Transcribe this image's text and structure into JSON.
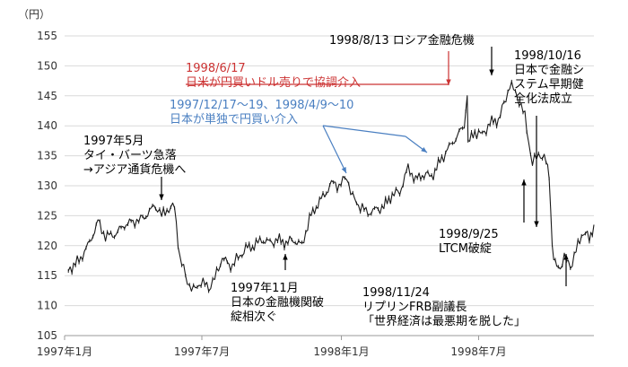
{
  "chart_data": {
    "type": "line",
    "y_unit_label": "（円）",
    "ylim": [
      105,
      155
    ],
    "yticks": [
      105,
      110,
      115,
      120,
      125,
      130,
      135,
      140,
      145,
      150,
      155
    ],
    "x_range": [
      "1997-01",
      "1998-11"
    ],
    "xticks": [
      {
        "at": "1997-01",
        "label": "1997年1月"
      },
      {
        "at": "1997-07",
        "label": "1997年7月"
      },
      {
        "at": "1998-01",
        "label": "1998年1月"
      },
      {
        "at": "1998-07",
        "label": "1998年7月"
      }
    ],
    "grid": "horizontal",
    "colors": {
      "line": "#1a1a1a",
      "grid": "#d9d9d9",
      "red": "#cc3333",
      "blue": "#4a7fc1"
    },
    "series": [
      {
        "values": [
          [
            "1997-01-06",
            116.0
          ],
          [
            "1997-01-20",
            117.5
          ],
          [
            "1997-02-03",
            120.5
          ],
          [
            "1997-02-14",
            124.0
          ],
          [
            "1997-02-24",
            121.5
          ],
          [
            "1997-03-10",
            122.0
          ],
          [
            "1997-03-21",
            123.5
          ],
          [
            "1997-04-01",
            124.0
          ],
          [
            "1997-04-14",
            124.5
          ],
          [
            "1997-04-25",
            126.0
          ],
          [
            "1997-05-01",
            126.8
          ],
          [
            "1997-05-09",
            125.0
          ],
          [
            "1997-05-16",
            126.0
          ],
          [
            "1997-05-26",
            126.5
          ],
          [
            "1997-06-02",
            118.0
          ],
          [
            "1997-06-12",
            114.0
          ],
          [
            "1997-06-20",
            112.5
          ],
          [
            "1997-06-30",
            114.0
          ],
          [
            "1997-07-10",
            113.0
          ],
          [
            "1997-07-18",
            114.5
          ],
          [
            "1997-07-28",
            118.0
          ],
          [
            "1997-08-08",
            116.5
          ],
          [
            "1997-08-18",
            118.0
          ],
          [
            "1997-08-28",
            119.5
          ],
          [
            "1997-09-08",
            120.0
          ],
          [
            "1997-09-18",
            121.0
          ],
          [
            "1997-09-29",
            120.5
          ],
          [
            "1997-10-09",
            121.0
          ],
          [
            "1997-10-20",
            120.5
          ],
          [
            "1997-10-30",
            121.0
          ],
          [
            "1997-11-10",
            120.0
          ],
          [
            "1997-11-20",
            124.5
          ],
          [
            "1997-12-01",
            127.0
          ],
          [
            "1997-12-10",
            128.5
          ],
          [
            "1997-12-19",
            130.5
          ],
          [
            "1997-12-29",
            130.0
          ],
          [
            "1998-01-08",
            131.5
          ],
          [
            "1998-01-16",
            128.0
          ],
          [
            "1998-01-26",
            126.5
          ],
          [
            "1998-02-05",
            125.5
          ],
          [
            "1998-02-16",
            126.0
          ],
          [
            "1998-02-26",
            126.5
          ],
          [
            "1998-03-09",
            128.5
          ],
          [
            "1998-03-19",
            129.0
          ],
          [
            "1998-03-30",
            133.0
          ],
          [
            "1998-04-09",
            131.0
          ],
          [
            "1998-04-20",
            132.0
          ],
          [
            "1998-04-30",
            131.5
          ],
          [
            "1998-05-11",
            134.0
          ],
          [
            "1998-05-21",
            136.0
          ],
          [
            "1998-06-01",
            138.0
          ],
          [
            "1998-06-12",
            140.0
          ],
          [
            "1998-06-16",
            145.5
          ],
          [
            "1998-06-17",
            137.0
          ],
          [
            "1998-06-26",
            139.0
          ],
          [
            "1998-07-06",
            138.5
          ],
          [
            "1998-07-16",
            140.5
          ],
          [
            "1998-07-27",
            141.0
          ],
          [
            "1998-08-06",
            144.5
          ],
          [
            "1998-08-11",
            147.0
          ],
          [
            "1998-08-21",
            145.0
          ],
          [
            "1998-08-31",
            141.5
          ],
          [
            "1998-09-10",
            133.5
          ],
          [
            "1998-09-18",
            135.5
          ],
          [
            "1998-09-28",
            134.0
          ],
          [
            "1998-10-02",
            132.0
          ],
          [
            "1998-10-06",
            120.5
          ],
          [
            "1998-10-08",
            117.5
          ],
          [
            "1998-10-14",
            116.0
          ],
          [
            "1998-10-22",
            118.0
          ],
          [
            "1998-10-30",
            116.5
          ],
          [
            "1998-11-09",
            120.0
          ],
          [
            "1998-11-16",
            122.5
          ],
          [
            "1998-11-24",
            121.0
          ],
          [
            "1998-11-30",
            123.5
          ]
        ]
      }
    ],
    "annotations": [
      {
        "lines": [
          "1997年5月",
          "タイ・バーツ急落",
          "→アジア通貨危機へ"
        ],
        "color": "#000000",
        "target": [
          "1997-05-20",
          126.8
        ]
      },
      {
        "lines": [
          "1997年11月",
          "日本の金融機関破",
          "綻相次ぐ"
        ],
        "color": "#000000",
        "target": [
          "1997-11-24",
          120.5
        ]
      },
      {
        "lines": [
          "1998/6/17",
          "日米が円買いドル売りで協調介入"
        ],
        "color": "#cc3333",
        "target": [
          "1998-06-17",
          145.3
        ]
      },
      {
        "lines": [
          "1997/12/17〜19、1998/4/9〜10",
          "日本が単独で円買い介入"
        ],
        "color": "#4a7fc1",
        "targets": [
          [
            "1997-12-18",
            130.3
          ],
          [
            "1998-04-09",
            134.0
          ]
        ]
      },
      {
        "lines": [
          "1998/8/13 ロシア金融危機"
        ],
        "color": "#000000",
        "target": [
          "1998-08-13",
          146.8
        ]
      },
      {
        "lines": [
          "1998/10/16",
          "日本で金融シ",
          "ステム早期健",
          "全化法成立"
        ],
        "color": "#000000",
        "target": [
          "1998-10-16",
          116.5
        ]
      },
      {
        "lines": [
          "1998/9/25",
          "LTCM破綻"
        ],
        "color": "#000000",
        "target": [
          "1998-09-28",
          133.5
        ]
      },
      {
        "lines": [
          "1998/11/24",
          "リプリンFRB副議長",
          "「世界経済は最悪期を脱した」"
        ],
        "color": "#000000",
        "target": [
          "1998-11-24",
          120.5
        ]
      }
    ]
  }
}
